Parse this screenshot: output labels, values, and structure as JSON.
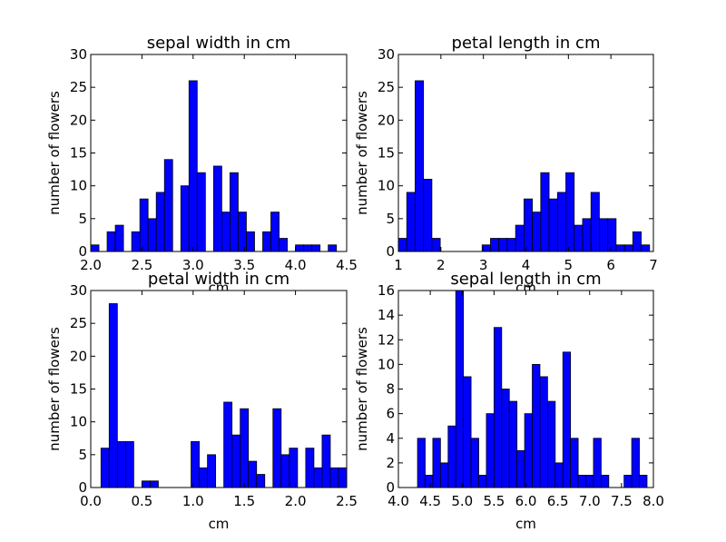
{
  "chart_data": [
    {
      "type": "bar",
      "title": "sepal width in cm",
      "xlabel": "cm",
      "ylabel": "number of flowers",
      "xlim": [
        2.0,
        4.5
      ],
      "ylim": [
        0,
        30
      ],
      "xticks": [
        "2.0",
        "2.5",
        "3.0",
        "3.5",
        "4.0",
        "4.5"
      ],
      "yticks": [
        "0",
        "5",
        "10",
        "15",
        "20",
        "25",
        "30"
      ],
      "bar_color": "#0000ff",
      "bin_edges": [
        2.0,
        2.08,
        2.16,
        2.24,
        2.32,
        2.4,
        2.48,
        2.56,
        2.64,
        2.72,
        2.8,
        2.88,
        2.96,
        3.04,
        3.12,
        3.2,
        3.28,
        3.36,
        3.44,
        3.52,
        3.6,
        3.68,
        3.76,
        3.84,
        3.92,
        4.0,
        4.08,
        4.16,
        4.24,
        4.32,
        4.4
      ],
      "values": [
        1,
        0,
        3,
        4,
        0,
        3,
        8,
        5,
        9,
        14,
        0,
        10,
        26,
        12,
        0,
        13,
        6,
        12,
        6,
        3,
        0,
        3,
        6,
        2,
        0,
        1,
        1,
        1,
        0,
        1
      ]
    },
    {
      "type": "bar",
      "title": "petal length in cm",
      "xlabel": "cm",
      "ylabel": "number of flowers",
      "xlim": [
        1,
        7
      ],
      "ylim": [
        0,
        30
      ],
      "xticks": [
        "1",
        "2",
        "3",
        "4",
        "5",
        "6",
        "7"
      ],
      "yticks": [
        "0",
        "5",
        "10",
        "15",
        "20",
        "25",
        "30"
      ],
      "bar_color": "#0000ff",
      "bin_edges": [
        1.0,
        1.197,
        1.394,
        1.591,
        1.788,
        1.985,
        2.182,
        2.379,
        2.576,
        2.773,
        2.97,
        3.167,
        3.364,
        3.561,
        3.758,
        3.955,
        4.152,
        4.349,
        4.546,
        4.743,
        4.94,
        5.137,
        5.334,
        5.531,
        5.728,
        5.925,
        6.122,
        6.319,
        6.516,
        6.713,
        6.91
      ],
      "values": [
        2,
        9,
        26,
        11,
        2,
        0,
        0,
        0,
        0,
        0,
        1,
        2,
        2,
        2,
        4,
        8,
        6,
        12,
        8,
        9,
        12,
        4,
        5,
        9,
        5,
        5,
        1,
        1,
        3,
        1
      ]
    },
    {
      "type": "bar",
      "title": "petal width in cm",
      "xlabel": "cm",
      "ylabel": "number of flowers",
      "xlim": [
        0.0,
        2.5
      ],
      "ylim": [
        0,
        30
      ],
      "xticks": [
        "0.0",
        "0.5",
        "1.0",
        "1.5",
        "2.0",
        "2.5"
      ],
      "yticks": [
        "0",
        "5",
        "10",
        "15",
        "20",
        "25",
        "30"
      ],
      "bar_color": "#0000ff",
      "bin_edges": [
        0.1,
        0.18,
        0.26,
        0.34,
        0.42,
        0.5,
        0.58,
        0.66,
        0.74,
        0.82,
        0.9,
        0.98,
        1.06,
        1.14,
        1.22,
        1.3,
        1.38,
        1.46,
        1.54,
        1.62,
        1.7,
        1.78,
        1.86,
        1.94,
        2.02,
        2.1,
        2.18,
        2.26,
        2.34,
        2.42,
        2.5
      ],
      "values": [
        6,
        28,
        7,
        7,
        0,
        1,
        1,
        0,
        0,
        0,
        0,
        7,
        3,
        5,
        0,
        13,
        8,
        12,
        4,
        2,
        0,
        12,
        5,
        6,
        0,
        6,
        3,
        8,
        3,
        3
      ]
    },
    {
      "type": "bar",
      "title": "sepal length in cm",
      "xlabel": "cm",
      "ylabel": "number of flowers",
      "xlim": [
        4.0,
        8.0
      ],
      "ylim": [
        0,
        16
      ],
      "xticks": [
        "4.0",
        "4.5",
        "5.0",
        "5.5",
        "6.0",
        "6.5",
        "7.0",
        "7.5",
        "8.0"
      ],
      "yticks": [
        "0",
        "2",
        "4",
        "6",
        "8",
        "10",
        "12",
        "14",
        "16"
      ],
      "bar_color": "#0000ff",
      "bin_edges": [
        4.3,
        4.42,
        4.54,
        4.66,
        4.78,
        4.9,
        5.02,
        5.14,
        5.26,
        5.38,
        5.5,
        5.62,
        5.74,
        5.86,
        5.98,
        6.1,
        6.22,
        6.34,
        6.46,
        6.58,
        6.7,
        6.82,
        6.94,
        7.06,
        7.18,
        7.3,
        7.42,
        7.54,
        7.66,
        7.78,
        7.9
      ],
      "values": [
        4,
        1,
        4,
        2,
        5,
        16,
        9,
        4,
        1,
        6,
        13,
        8,
        7,
        3,
        6,
        10,
        9,
        7,
        2,
        11,
        4,
        1,
        1,
        4,
        1,
        0,
        0,
        1,
        4,
        1
      ]
    }
  ]
}
